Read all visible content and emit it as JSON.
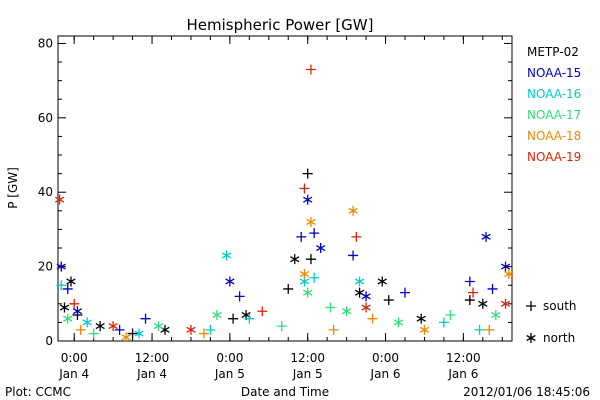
{
  "chart_data": {
    "type": "scatter",
    "title": "Hemispheric Power [GW]",
    "xlabel": "Date and Time",
    "ylabel": "P [GW]",
    "ylim": [
      0,
      82
    ],
    "xlim": [
      "2012-01-03 21:30",
      "2012-01-06 19:30"
    ],
    "yticks": [
      0,
      20,
      40,
      60,
      80
    ],
    "xticks": [
      {
        "time": "2012-01-04 00:00",
        "top": "0:00",
        "bottom": "Jan 4"
      },
      {
        "time": "2012-01-04 12:00",
        "top": "12:00",
        "bottom": "Jan 4"
      },
      {
        "time": "2012-01-05 00:00",
        "top": "0:00",
        "bottom": "Jan 5"
      },
      {
        "time": "2012-01-05 12:00",
        "top": "12:00",
        "bottom": "Jan 5"
      },
      {
        "time": "2012-01-06 00:00",
        "top": "0:00",
        "bottom": "Jan 6"
      },
      {
        "time": "2012-01-06 12:00",
        "top": "12:00",
        "bottom": "Jan 6"
      }
    ],
    "legend_position": "right",
    "marker_legend": [
      {
        "symbol": "+",
        "label": "south"
      },
      {
        "symbol": "*",
        "label": "north"
      }
    ],
    "series": [
      {
        "name": "METP-02",
        "color": "#000000",
        "points": [
          [
            "2012-01-03 22:30",
            9,
            "n"
          ],
          [
            "2012-01-03 23:30",
            16,
            "n"
          ],
          [
            "2012-01-04 00:30",
            7,
            "s"
          ],
          [
            "2012-01-04 04:00",
            4,
            "n"
          ],
          [
            "2012-01-04 09:00",
            2,
            "s"
          ],
          [
            "2012-01-04 14:00",
            3,
            "n"
          ],
          [
            "2012-01-05 00:30",
            6,
            "s"
          ],
          [
            "2012-01-05 02:30",
            7,
            "n"
          ],
          [
            "2012-01-05 09:00",
            14,
            "s"
          ],
          [
            "2012-01-05 10:00",
            22,
            "n"
          ],
          [
            "2012-01-05 12:00",
            45,
            "s"
          ],
          [
            "2012-01-05 12:30",
            22,
            "s"
          ],
          [
            "2012-01-05 20:00",
            13,
            "n"
          ],
          [
            "2012-01-05 23:30",
            16,
            "n"
          ],
          [
            "2012-01-06 00:30",
            11,
            "s"
          ],
          [
            "2012-01-06 05:30",
            6,
            "n"
          ],
          [
            "2012-01-06 13:00",
            11,
            "s"
          ],
          [
            "2012-01-06 15:00",
            10,
            "n"
          ]
        ]
      },
      {
        "name": "NOAA-15",
        "color": "#0000cc",
        "points": [
          [
            "2012-01-03 22:00",
            20,
            "n"
          ],
          [
            "2012-01-03 23:00",
            14,
            "s"
          ],
          [
            "2012-01-04 00:30",
            8,
            "n"
          ],
          [
            "2012-01-04 07:00",
            3,
            "s"
          ],
          [
            "2012-01-04 11:00",
            6,
            "s"
          ],
          [
            "2012-01-05 00:00",
            16,
            "n"
          ],
          [
            "2012-01-05 01:30",
            12,
            "s"
          ],
          [
            "2012-01-05 11:00",
            28,
            "s"
          ],
          [
            "2012-01-05 12:00",
            38,
            "n"
          ],
          [
            "2012-01-05 13:00",
            29,
            "s"
          ],
          [
            "2012-01-05 14:00",
            25,
            "n"
          ],
          [
            "2012-01-05 19:00",
            23,
            "s"
          ],
          [
            "2012-01-05 21:00",
            12,
            "n"
          ],
          [
            "2012-01-06 03:00",
            13,
            "s"
          ],
          [
            "2012-01-06 13:00",
            16,
            "s"
          ],
          [
            "2012-01-06 15:30",
            28,
            "n"
          ],
          [
            "2012-01-06 16:30",
            14,
            "s"
          ],
          [
            "2012-01-06 18:30",
            20,
            "n"
          ]
        ]
      },
      {
        "name": "NOAA-16",
        "color": "#00cccc",
        "points": [
          [
            "2012-01-03 22:00",
            15,
            "s"
          ],
          [
            "2012-01-04 02:00",
            5,
            "n"
          ],
          [
            "2012-01-04 10:00",
            2,
            "n"
          ],
          [
            "2012-01-04 21:00",
            3,
            "s"
          ],
          [
            "2012-01-04 23:30",
            23,
            "n"
          ],
          [
            "2012-01-05 03:00",
            6,
            "s"
          ],
          [
            "2012-01-05 11:30",
            16,
            "n"
          ],
          [
            "2012-01-05 13:00",
            17,
            "s"
          ],
          [
            "2012-01-05 20:00",
            16,
            "n"
          ],
          [
            "2012-01-06 09:00",
            5,
            "s"
          ],
          [
            "2012-01-06 14:30",
            3,
            "s"
          ]
        ]
      },
      {
        "name": "NOAA-17",
        "color": "#33dd77",
        "points": [
          [
            "2012-01-03 23:00",
            6,
            "n"
          ],
          [
            "2012-01-04 03:00",
            2,
            "s"
          ],
          [
            "2012-01-04 13:00",
            4,
            "n"
          ],
          [
            "2012-01-04 22:00",
            7,
            "n"
          ],
          [
            "2012-01-05 08:00",
            4,
            "s"
          ],
          [
            "2012-01-05 12:00",
            13,
            "n"
          ],
          [
            "2012-01-05 15:30",
            9,
            "s"
          ],
          [
            "2012-01-05 18:00",
            8,
            "n"
          ],
          [
            "2012-01-06 02:00",
            5,
            "n"
          ],
          [
            "2012-01-06 10:00",
            7,
            "s"
          ],
          [
            "2012-01-06 17:00",
            7,
            "n"
          ]
        ]
      },
      {
        "name": "NOAA-18",
        "color": "#ee8800",
        "points": [
          [
            "2012-01-04 01:00",
            3,
            "s"
          ],
          [
            "2012-01-04 08:00",
            1,
            "n"
          ],
          [
            "2012-01-04 20:00",
            2,
            "s"
          ],
          [
            "2012-01-05 11:30",
            18,
            "n"
          ],
          [
            "2012-01-05 12:30",
            32,
            "n"
          ],
          [
            "2012-01-05 16:00",
            3,
            "s"
          ],
          [
            "2012-01-05 19:00",
            35,
            "n"
          ],
          [
            "2012-01-05 22:00",
            6,
            "s"
          ],
          [
            "2012-01-06 06:00",
            3,
            "n"
          ],
          [
            "2012-01-06 16:00",
            3,
            "s"
          ],
          [
            "2012-01-06 19:00",
            18,
            "n"
          ]
        ]
      },
      {
        "name": "NOAA-19",
        "color": "#dd2200",
        "points": [
          [
            "2012-01-03 21:45",
            38,
            "n"
          ],
          [
            "2012-01-04 00:00",
            10,
            "s"
          ],
          [
            "2012-01-04 06:00",
            4,
            "n"
          ],
          [
            "2012-01-04 18:00",
            3,
            "n"
          ],
          [
            "2012-01-05 05:00",
            8,
            "s"
          ],
          [
            "2012-01-05 11:30",
            41,
            "s"
          ],
          [
            "2012-01-05 12:30",
            73,
            "s"
          ],
          [
            "2012-01-05 19:30",
            28,
            "s"
          ],
          [
            "2012-01-05 21:00",
            9,
            "n"
          ],
          [
            "2012-01-06 13:30",
            13,
            "s"
          ],
          [
            "2012-01-06 18:30",
            10,
            "n"
          ]
        ]
      }
    ]
  },
  "footer": {
    "plot_credit": "Plot: CCMC",
    "timestamp": "2012/01/06 18:45:06"
  }
}
